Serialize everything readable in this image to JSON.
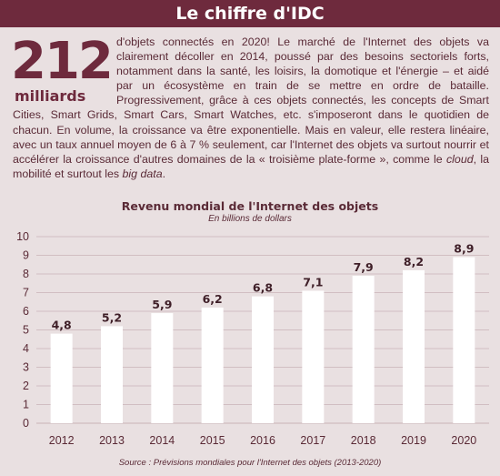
{
  "header": {
    "title": "Le chiffre d'IDC"
  },
  "highlight": {
    "number": "212",
    "unit": "milliards"
  },
  "paragraph": {
    "part1": "d'objets connectés en 2020! Le marché de l'Internet des objets va clairement décoller en 2014, poussé par des besoins sectoriels forts, notamment dans la santé, les loisirs, la domotique et l'énergie – et aidé par un écosystème en train de se mettre en ordre de bataille. Progressivement, grâce à ces objets connectés, les concepts de Smart Cities, Smart Grids, Smart Cars, Smart Watches, etc. s'imposeront dans le quotidien de chacun. En volume, la croissance va être exponentielle. Mais en valeur, elle restera linéaire, avec un taux annuel moyen de 6 à 7 % seulement, car l'Internet des objets va surtout nourrir et accélérer la croissance d'autres domaines de la « troisième plate-forme », comme le ",
    "em1": "cloud",
    "part2": ", la mobilité et surtout les ",
    "em2": "big data",
    "part3": "."
  },
  "chart_data": {
    "type": "bar",
    "title": "Revenu mondial de l'Internet des objets",
    "subtitle": "En billions de dollars",
    "categories": [
      "2012",
      "2013",
      "2014",
      "2015",
      "2016",
      "2017",
      "2018",
      "2019",
      "2020"
    ],
    "values": [
      4.8,
      5.2,
      5.9,
      6.2,
      6.8,
      7.1,
      7.9,
      8.2,
      8.9
    ],
    "value_labels": [
      "4,8",
      "5,2",
      "5,9",
      "6,2",
      "6,8",
      "7,1",
      "7,9",
      "8,2",
      "8,9"
    ],
    "yticks": [
      "0",
      "1",
      "2",
      "3",
      "4",
      "5",
      "6",
      "7",
      "8",
      "9",
      "10"
    ],
    "ylim": [
      0,
      10
    ],
    "grid": true,
    "bar_color": "#ffffff",
    "grid_color": "#c9b3b7"
  },
  "footer": {
    "source": "Source : Prévisions mondiales pour l'Internet des objets (2013-2020)"
  },
  "colors": {
    "brand": "#6e2a3d",
    "background": "#e9e0e1",
    "text": "#5a2a36"
  }
}
